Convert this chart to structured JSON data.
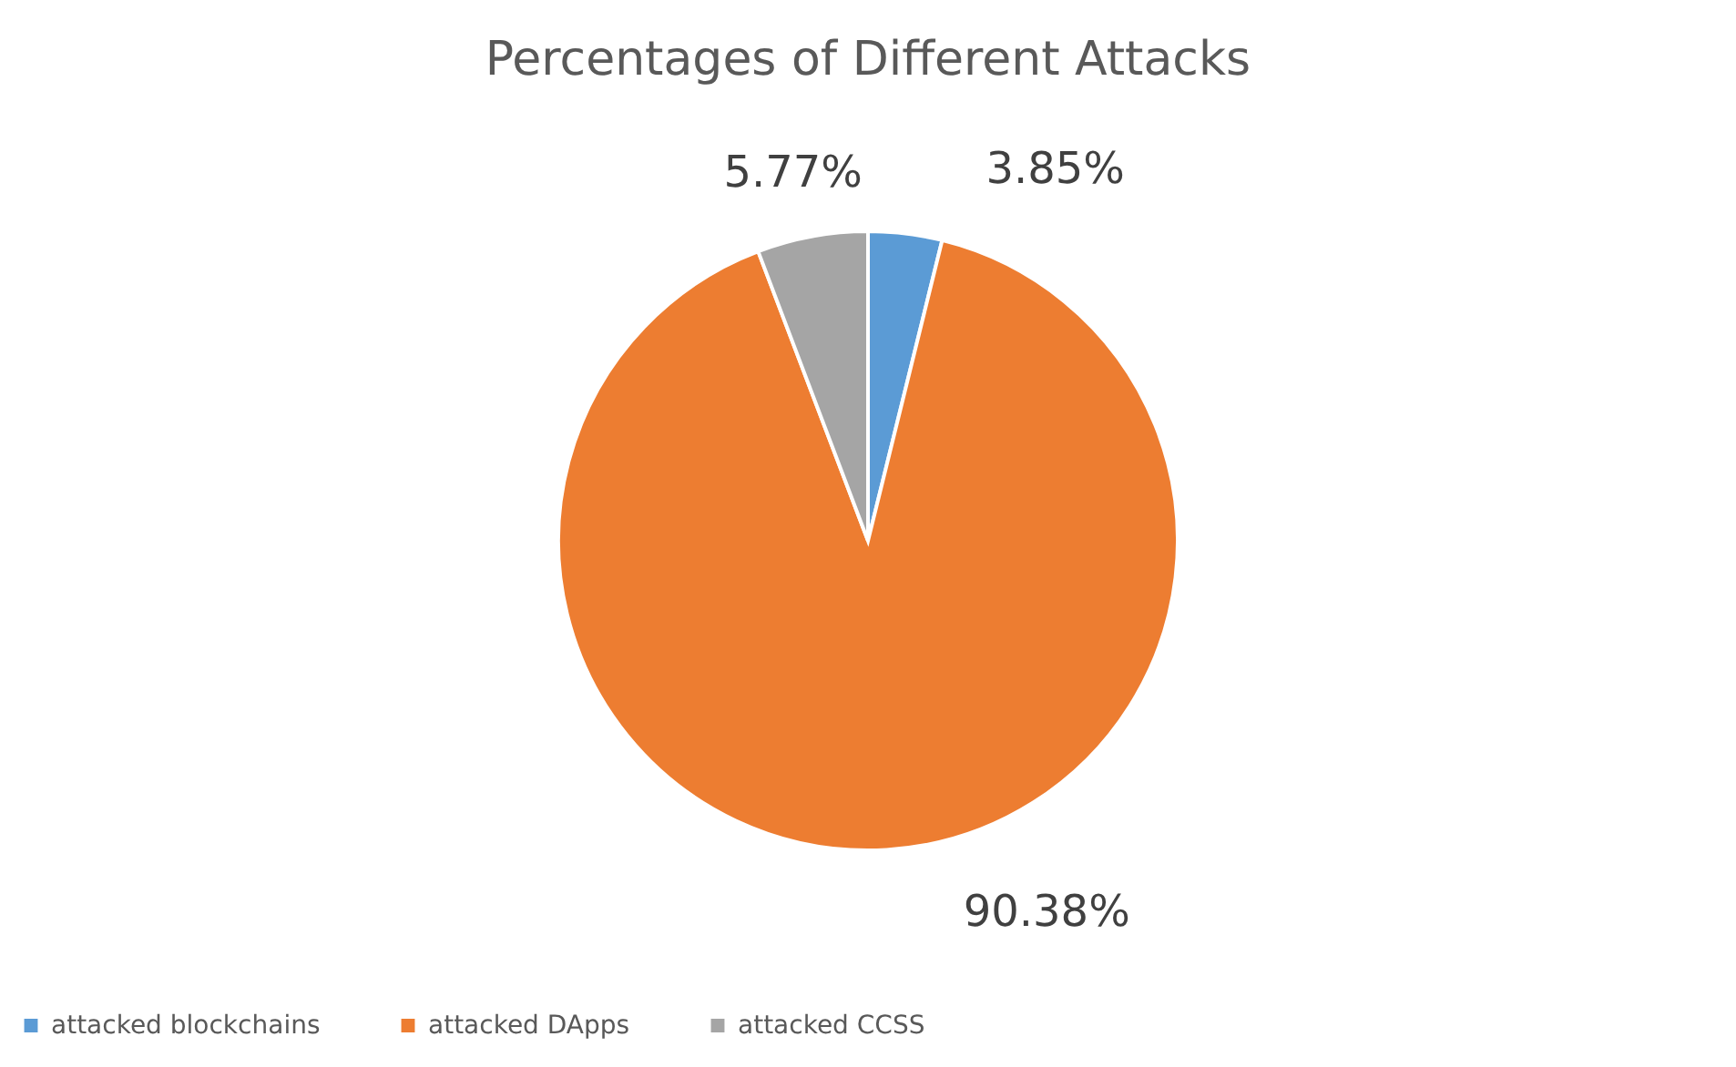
{
  "chart_data": {
    "type": "pie",
    "title": "Percentages of Different Attacks",
    "categories": [
      "attacked blockchains",
      "attacked DApps",
      "attacked CCSS"
    ],
    "values": [
      3.85,
      90.38,
      5.77
    ],
    "colors": [
      "#5b9bd5",
      "#ed7d31",
      "#a5a5a5"
    ],
    "value_labels": [
      "3.85%",
      "90.38%",
      "5.77%"
    ],
    "legend": "bottom"
  }
}
